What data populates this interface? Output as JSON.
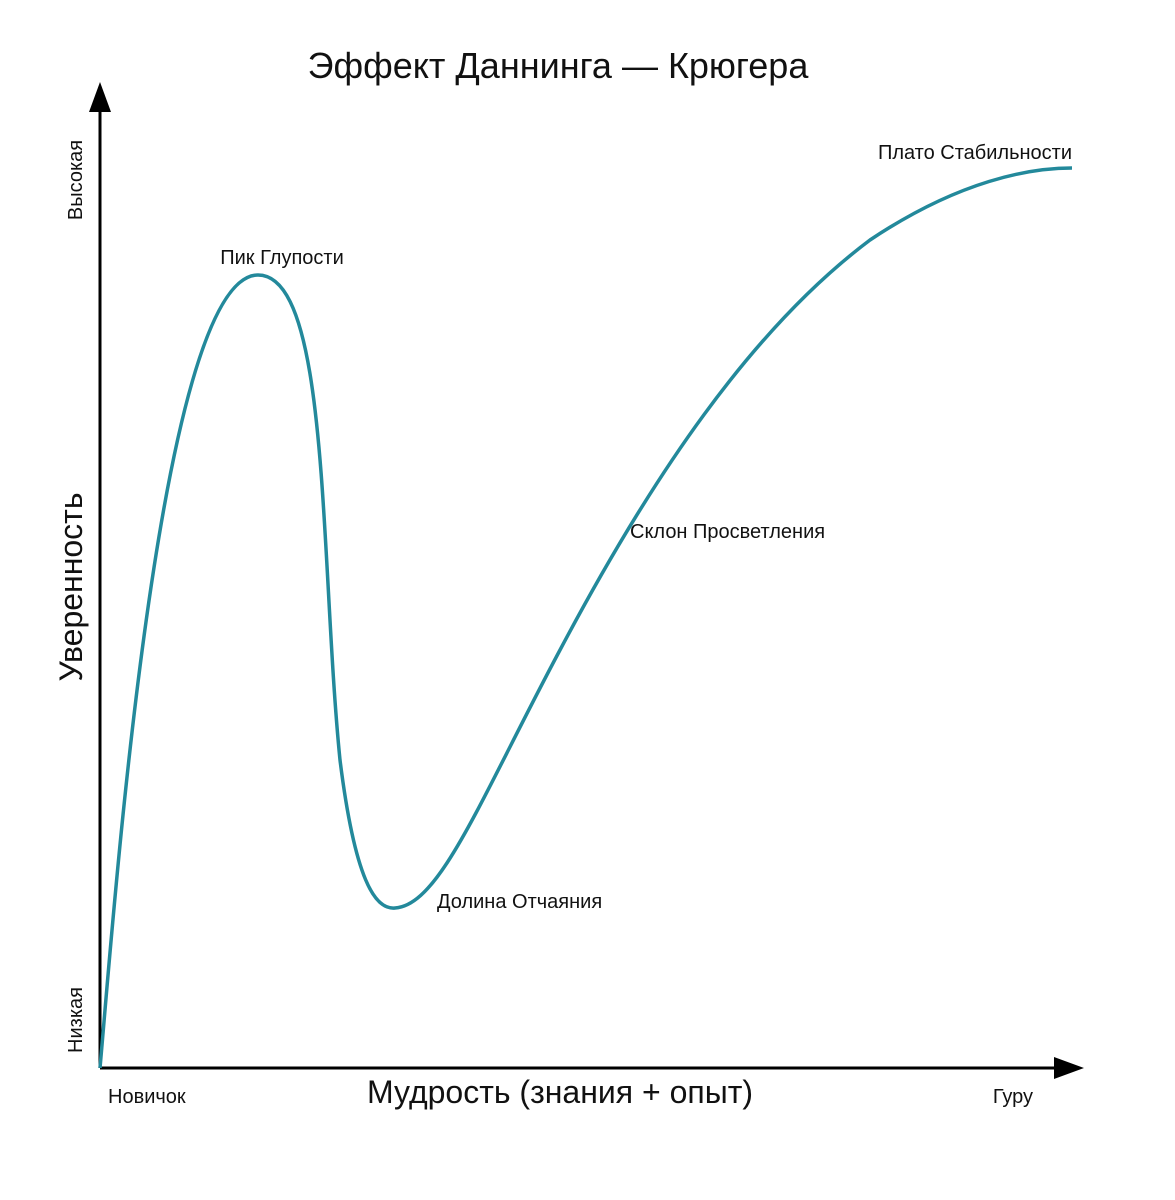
{
  "title": "Эффект Даннинга — Крюгера",
  "y_axis": {
    "label": "Уверенность",
    "high": "Высокая",
    "low": "Низкая"
  },
  "x_axis": {
    "label": "Мудрость (знания + опыт)",
    "start": "Новичок",
    "end": "Гуру"
  },
  "annotations": [
    "Пик Глупости",
    "Долина Отчаяния",
    "Склон Просветления",
    "Плато Стабильности"
  ]
}
